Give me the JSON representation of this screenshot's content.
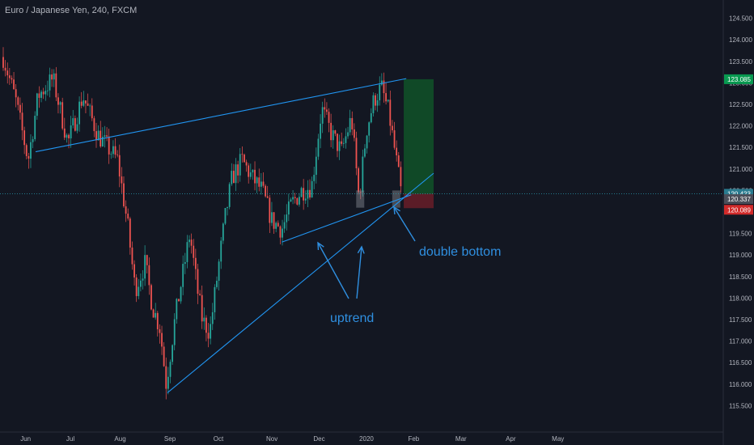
{
  "header": {
    "title": "Euro / Japanese Yen, 240, FXCM"
  },
  "chart_data": {
    "type": "candlestick",
    "title": "Euro / Japanese Yen, 240, FXCM",
    "symbol": "EUR/JPY",
    "ylim": [
      115.3,
      124.7
    ],
    "y_ticks": [
      "124.500",
      "124.000",
      "123.500",
      "123.000",
      "122.500",
      "122.000",
      "121.500",
      "121.000",
      "120.500",
      "120.000",
      "119.500",
      "119.000",
      "118.500",
      "118.000",
      "117.500",
      "117.000",
      "116.500",
      "116.000",
      "115.500"
    ],
    "x_ticks": [
      "Jun",
      "Jul",
      "Aug",
      "Sep",
      "Oct",
      "Nov",
      "Dec",
      "2020",
      "Feb",
      "Mar",
      "Apr",
      "May"
    ],
    "price_path": [
      [
        0,
        123.6
      ],
      [
        0.5,
        122.6
      ],
      [
        1,
        121.2
      ],
      [
        1.4,
        122.7
      ],
      [
        2,
        123.1
      ],
      [
        2.6,
        121.6
      ],
      [
        3.2,
        122.7
      ],
      [
        3.8,
        121.8
      ],
      [
        4.2,
        121.5
      ],
      [
        4.6,
        121.2
      ],
      [
        5,
        119.7
      ],
      [
        5.3,
        118.2
      ],
      [
        5.7,
        118.8
      ],
      [
        6,
        117.8
      ],
      [
        6.3,
        117.3
      ],
      [
        6.55,
        116.0
      ],
      [
        6.9,
        117.5
      ],
      [
        7.2,
        118.5
      ],
      [
        7.5,
        119.5
      ],
      [
        7.8,
        118.2
      ],
      [
        8,
        117.5
      ],
      [
        8.3,
        117.2
      ],
      [
        8.6,
        118.5
      ],
      [
        8.9,
        119.8
      ],
      [
        9.2,
        120.8
      ],
      [
        9.6,
        121.2
      ],
      [
        10,
        120.8
      ],
      [
        10.4,
        120.5
      ],
      [
        10.8,
        119.8
      ],
      [
        11.2,
        119.6
      ],
      [
        11.6,
        120.2
      ],
      [
        12,
        120.5
      ],
      [
        12.4,
        120.6
      ],
      [
        12.8,
        122.4
      ],
      [
        13.2,
        121.8
      ],
      [
        13.6,
        121.4
      ],
      [
        14,
        122.2
      ],
      [
        14.3,
        120.3
      ],
      [
        14.6,
        121.9
      ],
      [
        14.9,
        122.6
      ],
      [
        15.2,
        122.9
      ],
      [
        15.5,
        122.3
      ],
      [
        15.8,
        121.2
      ],
      [
        16.0,
        120.4
      ]
    ],
    "trendlines": [
      {
        "name": "upper-resistance",
        "points": [
          [
            1.3,
            121.4
          ],
          [
            16.2,
            123.1
          ]
        ],
        "color": "#2196f3"
      },
      {
        "name": "lower-support-1",
        "points": [
          [
            11.2,
            119.3
          ],
          [
            16.4,
            120.4
          ]
        ],
        "color": "#2196f3"
      },
      {
        "name": "lower-support-2",
        "points": [
          [
            6.6,
            115.8
          ],
          [
            17.3,
            120.9
          ]
        ],
        "color": "#2196f3"
      }
    ],
    "position": {
      "entry": 120.423,
      "target": 123.085,
      "stop": 120.089
    },
    "double_bottom_boxes": [
      [
        14.35,
        120.1
      ],
      [
        15.8,
        120.1
      ]
    ],
    "price_tags": [
      {
        "label": "123.085",
        "value": 123.085,
        "color": "#089950"
      },
      {
        "label": "120.423",
        "value": 120.423,
        "color": "#2a7b8f"
      },
      {
        "label": "120.337",
        "value": 120.337,
        "color": "#4a4e59"
      },
      {
        "label": "120.089",
        "value": 120.089,
        "color": "#d12a2a"
      }
    ],
    "annotations": {
      "double_bottom": "double bottom",
      "uptrend": "uptrend"
    },
    "grid": false
  }
}
